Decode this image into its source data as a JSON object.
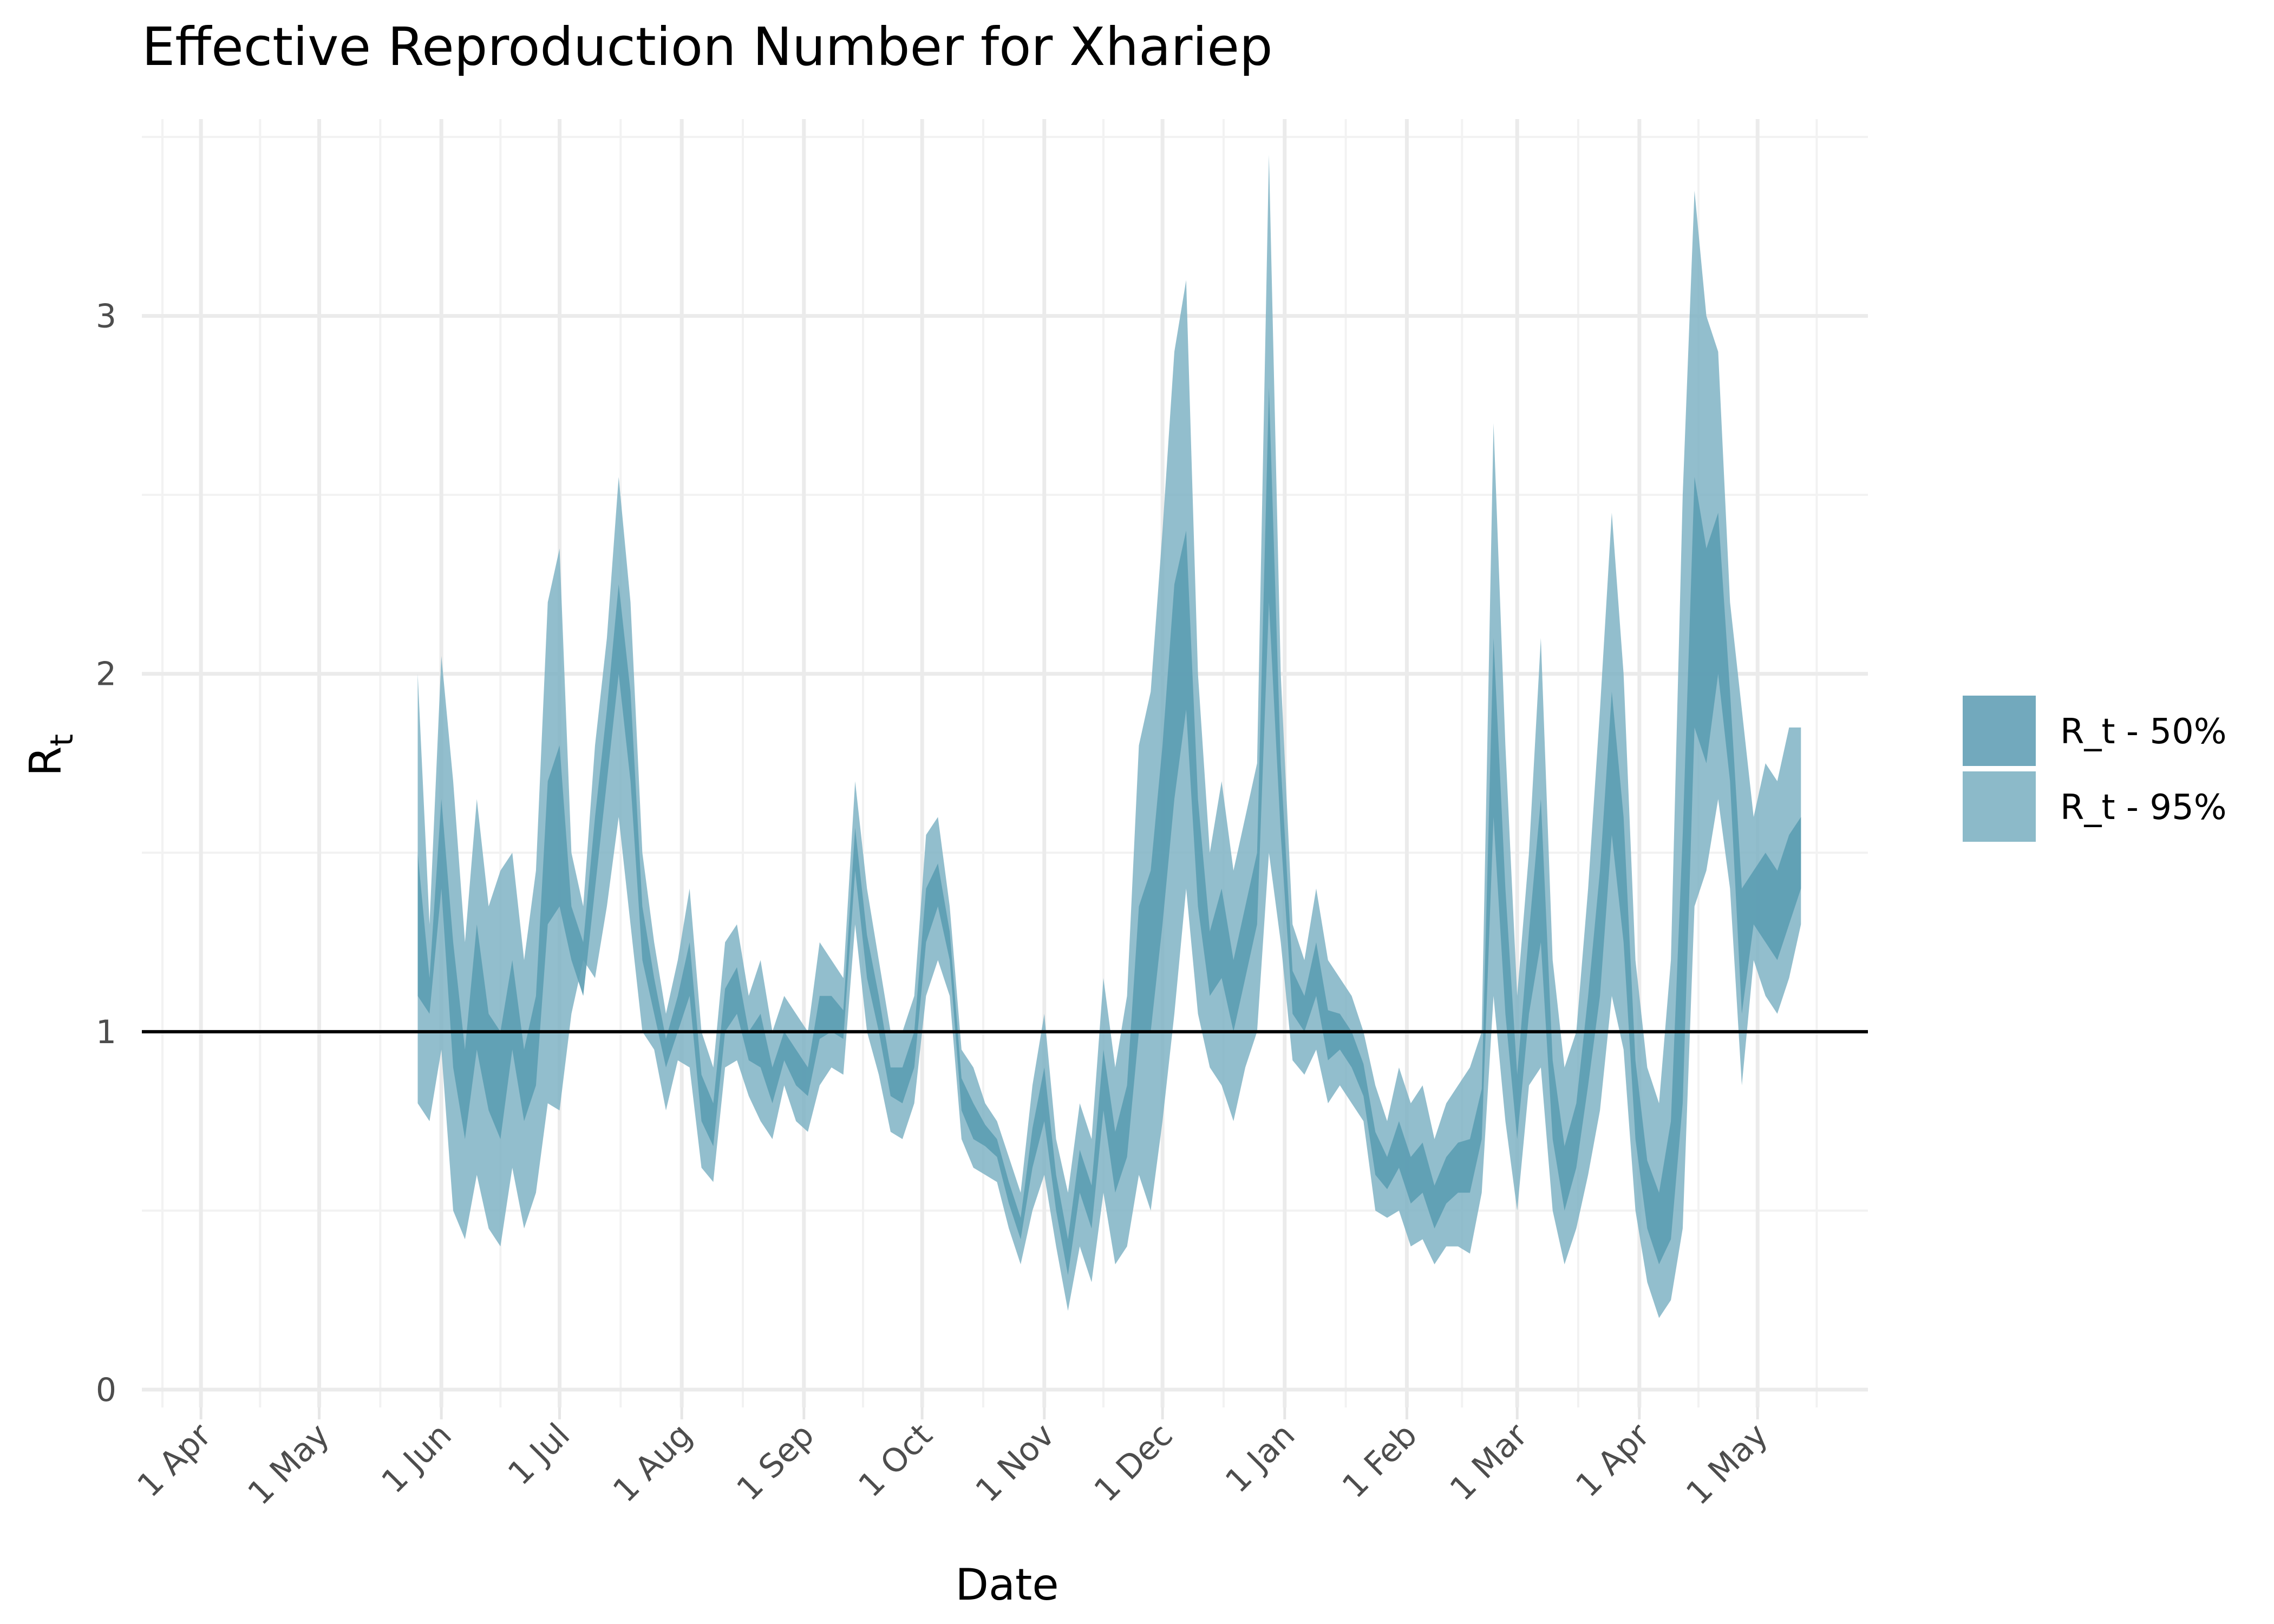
{
  "chart_data": {
    "type": "area",
    "title": "Effective Reproduction Number for Xhariep",
    "xlabel": "Date",
    "ylabel_main": "R",
    "ylabel_sub": "t",
    "x_tick_labels": [
      "1 Apr",
      "1 May",
      "1 Jun",
      "1 Jul",
      "1 Aug",
      "1 Sep",
      "1 Oct",
      "1 Nov",
      "1 Dec",
      "1 Jan",
      "1 Feb",
      "1 Mar",
      "1 Apr",
      "1 May"
    ],
    "x_tick_dates": [
      "2020-04-01",
      "2020-05-01",
      "2020-06-01",
      "2020-07-01",
      "2020-08-01",
      "2020-09-01",
      "2020-10-01",
      "2020-11-01",
      "2020-12-01",
      "2021-01-01",
      "2021-02-01",
      "2021-03-01",
      "2021-04-01",
      "2021-05-01"
    ],
    "xlim": [
      "2020-03-17",
      "2021-05-29"
    ],
    "ylim": [
      -0.05,
      3.55
    ],
    "y_ticks": [
      0,
      1,
      2,
      3
    ],
    "y_tick_labels": [
      "0",
      "1",
      "2",
      "3"
    ],
    "reference_line": 1,
    "grid": true,
    "legend_position": "right",
    "colors": {
      "band_50": "#5c9db3",
      "band_95": "#7fb3c4",
      "reference_line": "#000000",
      "legend_50": "#72a9bd",
      "legend_95": "#8cbac9"
    },
    "series": [
      {
        "name": "R_t - 95%",
        "dates": [
          "2020-05-26",
          "2020-05-29",
          "2020-06-01",
          "2020-06-04",
          "2020-06-07",
          "2020-06-10",
          "2020-06-13",
          "2020-06-16",
          "2020-06-19",
          "2020-06-22",
          "2020-06-25",
          "2020-06-28",
          "2020-07-01",
          "2020-07-04",
          "2020-07-07",
          "2020-07-10",
          "2020-07-13",
          "2020-07-16",
          "2020-07-19",
          "2020-07-22",
          "2020-07-25",
          "2020-07-28",
          "2020-07-31",
          "2020-08-03",
          "2020-08-06",
          "2020-08-09",
          "2020-08-12",
          "2020-08-15",
          "2020-08-18",
          "2020-08-21",
          "2020-08-24",
          "2020-08-27",
          "2020-08-30",
          "2020-09-02",
          "2020-09-05",
          "2020-09-08",
          "2020-09-11",
          "2020-09-14",
          "2020-09-17",
          "2020-09-20",
          "2020-09-23",
          "2020-09-26",
          "2020-09-29",
          "2020-10-02",
          "2020-10-05",
          "2020-10-08",
          "2020-10-11",
          "2020-10-14",
          "2020-10-17",
          "2020-10-20",
          "2020-10-23",
          "2020-10-26",
          "2020-10-29",
          "2020-11-01",
          "2020-11-04",
          "2020-11-07",
          "2020-11-10",
          "2020-11-13",
          "2020-11-16",
          "2020-11-19",
          "2020-11-22",
          "2020-11-25",
          "2020-11-28",
          "2020-12-01",
          "2020-12-04",
          "2020-12-07",
          "2020-12-10",
          "2020-12-13",
          "2020-12-16",
          "2020-12-19",
          "2020-12-22",
          "2020-12-25",
          "2020-12-28",
          "2020-12-31",
          "2021-01-03",
          "2021-01-06",
          "2021-01-09",
          "2021-01-12",
          "2021-01-15",
          "2021-01-18",
          "2021-01-21",
          "2021-01-24",
          "2021-01-27",
          "2021-01-30",
          "2021-02-02",
          "2021-02-05",
          "2021-02-08",
          "2021-02-11",
          "2021-02-14",
          "2021-02-17",
          "2021-02-20",
          "2021-02-23",
          "2021-02-26",
          "2021-03-01",
          "2021-03-04",
          "2021-03-07",
          "2021-03-10",
          "2021-03-13",
          "2021-03-16",
          "2021-03-19",
          "2021-03-22",
          "2021-03-25",
          "2021-03-28",
          "2021-03-31",
          "2021-04-03",
          "2021-04-06",
          "2021-04-09",
          "2021-04-12",
          "2021-04-15",
          "2021-04-18",
          "2021-04-21",
          "2021-04-24",
          "2021-04-27",
          "2021-04-30",
          "2021-05-03",
          "2021-05-06",
          "2021-05-09",
          "2021-05-12"
        ],
        "lower": [
          0.8,
          0.75,
          0.95,
          0.5,
          0.42,
          0.6,
          0.45,
          0.4,
          0.62,
          0.45,
          0.55,
          0.8,
          0.78,
          1.05,
          1.2,
          1.15,
          1.35,
          1.6,
          1.3,
          1.0,
          0.95,
          0.78,
          0.92,
          0.9,
          0.62,
          0.58,
          0.9,
          0.92,
          0.82,
          0.75,
          0.7,
          0.85,
          0.75,
          0.72,
          0.85,
          0.9,
          0.88,
          1.3,
          1.0,
          0.88,
          0.72,
          0.7,
          0.8,
          1.1,
          1.2,
          1.1,
          0.7,
          0.62,
          0.6,
          0.58,
          0.45,
          0.35,
          0.5,
          0.6,
          0.4,
          0.22,
          0.4,
          0.3,
          0.55,
          0.35,
          0.4,
          0.6,
          0.5,
          0.75,
          1.05,
          1.4,
          1.05,
          0.9,
          0.85,
          0.75,
          0.9,
          1.0,
          1.5,
          1.25,
          0.92,
          0.88,
          0.95,
          0.8,
          0.85,
          0.8,
          0.75,
          0.5,
          0.48,
          0.5,
          0.4,
          0.42,
          0.35,
          0.4,
          0.4,
          0.38,
          0.55,
          1.1,
          0.75,
          0.5,
          0.85,
          0.9,
          0.5,
          0.35,
          0.45,
          0.6,
          0.78,
          1.1,
          0.95,
          0.5,
          0.3,
          0.2,
          0.25,
          0.45,
          1.35,
          1.45,
          1.65,
          1.4,
          0.85,
          1.2,
          1.1,
          1.05,
          1.15,
          1.3
        ],
        "upper": [
          2.0,
          1.3,
          2.05,
          1.7,
          1.25,
          1.65,
          1.35,
          1.45,
          1.5,
          1.2,
          1.45,
          2.2,
          2.35,
          1.5,
          1.35,
          1.8,
          2.1,
          2.55,
          2.2,
          1.5,
          1.25,
          1.05,
          1.2,
          1.4,
          1.0,
          0.9,
          1.25,
          1.3,
          1.1,
          1.2,
          1.0,
          1.1,
          1.05,
          1.0,
          1.25,
          1.2,
          1.15,
          1.7,
          1.4,
          1.2,
          1.0,
          1.0,
          1.1,
          1.55,
          1.6,
          1.35,
          0.95,
          0.9,
          0.8,
          0.75,
          0.65,
          0.55,
          0.85,
          1.05,
          0.7,
          0.55,
          0.8,
          0.7,
          1.15,
          0.9,
          1.1,
          1.8,
          1.95,
          2.4,
          2.9,
          3.1,
          2.0,
          1.5,
          1.7,
          1.45,
          1.6,
          1.75,
          3.45,
          2.0,
          1.3,
          1.2,
          1.4,
          1.2,
          1.15,
          1.1,
          1.0,
          0.85,
          0.75,
          0.9,
          0.8,
          0.85,
          0.7,
          0.8,
          0.85,
          0.9,
          1.0,
          2.7,
          1.8,
          1.1,
          1.5,
          2.1,
          1.2,
          0.9,
          1.0,
          1.4,
          1.9,
          2.45,
          2.0,
          1.2,
          0.9,
          0.8,
          1.2,
          2.5,
          3.35,
          3.0,
          2.9,
          2.2,
          1.9,
          1.6,
          1.75,
          1.7,
          1.85,
          1.85
        ]
      },
      {
        "name": "R_t - 50%",
        "dates": [
          "2020-05-26",
          "2020-05-29",
          "2020-06-01",
          "2020-06-04",
          "2020-06-07",
          "2020-06-10",
          "2020-06-13",
          "2020-06-16",
          "2020-06-19",
          "2020-06-22",
          "2020-06-25",
          "2020-06-28",
          "2020-07-01",
          "2020-07-04",
          "2020-07-07",
          "2020-07-10",
          "2020-07-13",
          "2020-07-16",
          "2020-07-19",
          "2020-07-22",
          "2020-07-25",
          "2020-07-28",
          "2020-07-31",
          "2020-08-03",
          "2020-08-06",
          "2020-08-09",
          "2020-08-12",
          "2020-08-15",
          "2020-08-18",
          "2020-08-21",
          "2020-08-24",
          "2020-08-27",
          "2020-08-30",
          "2020-09-02",
          "2020-09-05",
          "2020-09-08",
          "2020-09-11",
          "2020-09-14",
          "2020-09-17",
          "2020-09-20",
          "2020-09-23",
          "2020-09-26",
          "2020-09-29",
          "2020-10-02",
          "2020-10-05",
          "2020-10-08",
          "2020-10-11",
          "2020-10-14",
          "2020-10-17",
          "2020-10-20",
          "2020-10-23",
          "2020-10-26",
          "2020-10-29",
          "2020-11-01",
          "2020-11-04",
          "2020-11-07",
          "2020-11-10",
          "2020-11-13",
          "2020-11-16",
          "2020-11-19",
          "2020-11-22",
          "2020-11-25",
          "2020-11-28",
          "2020-12-01",
          "2020-12-04",
          "2020-12-07",
          "2020-12-10",
          "2020-12-13",
          "2020-12-16",
          "2020-12-19",
          "2020-12-22",
          "2020-12-25",
          "2020-12-28",
          "2020-12-31",
          "2021-01-03",
          "2021-01-06",
          "2021-01-09",
          "2021-01-12",
          "2021-01-15",
          "2021-01-18",
          "2021-01-21",
          "2021-01-24",
          "2021-01-27",
          "2021-01-30",
          "2021-02-02",
          "2021-02-05",
          "2021-02-08",
          "2021-02-11",
          "2021-02-14",
          "2021-02-17",
          "2021-02-20",
          "2021-02-23",
          "2021-02-26",
          "2021-03-01",
          "2021-03-04",
          "2021-03-07",
          "2021-03-10",
          "2021-03-13",
          "2021-03-16",
          "2021-03-19",
          "2021-03-22",
          "2021-03-25",
          "2021-03-28",
          "2021-03-31",
          "2021-04-03",
          "2021-04-06",
          "2021-04-09",
          "2021-04-12",
          "2021-04-15",
          "2021-04-18",
          "2021-04-21",
          "2021-04-24",
          "2021-04-27",
          "2021-04-30",
          "2021-05-03",
          "2021-05-06",
          "2021-05-09",
          "2021-05-12"
        ],
        "lower": [
          1.1,
          1.05,
          1.4,
          0.9,
          0.7,
          0.95,
          0.78,
          0.7,
          0.95,
          0.75,
          0.85,
          1.3,
          1.35,
          1.2,
          1.1,
          1.4,
          1.7,
          2.0,
          1.7,
          1.2,
          1.05,
          0.9,
          1.0,
          1.1,
          0.75,
          0.68,
          1.0,
          1.05,
          0.92,
          0.9,
          0.8,
          0.92,
          0.85,
          0.82,
          0.98,
          1.0,
          0.98,
          1.45,
          1.15,
          1.0,
          0.82,
          0.8,
          0.9,
          1.25,
          1.35,
          1.2,
          0.78,
          0.7,
          0.68,
          0.65,
          0.52,
          0.42,
          0.62,
          0.75,
          0.5,
          0.32,
          0.55,
          0.45,
          0.78,
          0.55,
          0.65,
          1.0,
          1.0,
          1.3,
          1.65,
          1.9,
          1.35,
          1.1,
          1.15,
          1.0,
          1.15,
          1.3,
          2.2,
          1.55,
          1.05,
          1.0,
          1.1,
          0.92,
          0.95,
          0.9,
          0.82,
          0.6,
          0.56,
          0.62,
          0.52,
          0.55,
          0.45,
          0.52,
          0.55,
          0.55,
          0.7,
          1.6,
          1.05,
          0.7,
          1.05,
          1.25,
          0.7,
          0.5,
          0.62,
          0.85,
          1.1,
          1.55,
          1.25,
          0.7,
          0.45,
          0.35,
          0.42,
          0.8,
          1.85,
          1.75,
          2.0,
          1.7,
          1.05,
          1.3,
          1.25,
          1.2,
          1.3,
          1.4
        ],
        "upper": [
          1.5,
          1.15,
          1.65,
          1.25,
          0.95,
          1.3,
          1.05,
          1.0,
          1.2,
          0.95,
          1.1,
          1.7,
          1.8,
          1.35,
          1.25,
          1.6,
          1.9,
          2.25,
          1.95,
          1.35,
          1.15,
          0.98,
          1.1,
          1.25,
          0.88,
          0.8,
          1.12,
          1.18,
          1.0,
          1.05,
          0.9,
          1.0,
          0.95,
          0.9,
          1.1,
          1.1,
          1.06,
          1.57,
          1.27,
          1.1,
          0.9,
          0.9,
          1.0,
          1.4,
          1.47,
          1.28,
          0.87,
          0.8,
          0.74,
          0.7,
          0.58,
          0.48,
          0.73,
          0.9,
          0.6,
          0.42,
          0.67,
          0.57,
          0.95,
          0.72,
          0.85,
          1.35,
          1.45,
          1.8,
          2.25,
          2.4,
          1.65,
          1.28,
          1.4,
          1.2,
          1.35,
          1.5,
          2.8,
          1.75,
          1.17,
          1.1,
          1.25,
          1.06,
          1.05,
          1.0,
          0.91,
          0.72,
          0.65,
          0.75,
          0.65,
          0.69,
          0.57,
          0.65,
          0.69,
          0.7,
          0.84,
          2.1,
          1.4,
          0.88,
          1.28,
          1.65,
          0.92,
          0.68,
          0.8,
          1.1,
          1.45,
          1.95,
          1.6,
          0.92,
          0.64,
          0.55,
          0.75,
          1.55,
          2.55,
          2.35,
          2.45,
          1.95,
          1.4,
          1.45,
          1.5,
          1.45,
          1.55,
          1.6
        ]
      }
    ],
    "legend": [
      {
        "label": "R_t - 50%",
        "color_key": "legend_50"
      },
      {
        "label": "R_t - 95%",
        "color_key": "legend_95"
      }
    ]
  }
}
